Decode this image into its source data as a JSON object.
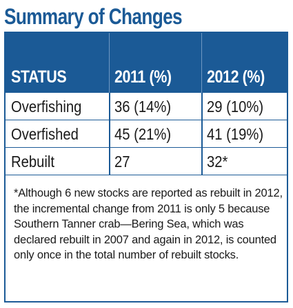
{
  "title": "Summary of Changes",
  "table": {
    "headers": [
      "STATUS",
      "2011 (%)",
      "2012 (%)"
    ],
    "rows": [
      [
        "Overfishing",
        "36 (14%)",
        "29 (10%)"
      ],
      [
        "Overfished",
        "45 (21%)",
        "41 (19%)"
      ],
      [
        "Rebuilt",
        "27",
        "32*"
      ]
    ]
  },
  "footnote": "*Although 6 new stocks are reported as rebuilt in 2012, the incremental change from 2011 is only 5 because Southern Tanner crab—Bering Sea, which was declared rebuilt in 2007 and again in 2012, is counted only once in the total number of rebuilt stocks.",
  "colors": {
    "accent": "#1b5a96",
    "header_text": "#ffffff",
    "body_text": "#1a1a1a"
  }
}
